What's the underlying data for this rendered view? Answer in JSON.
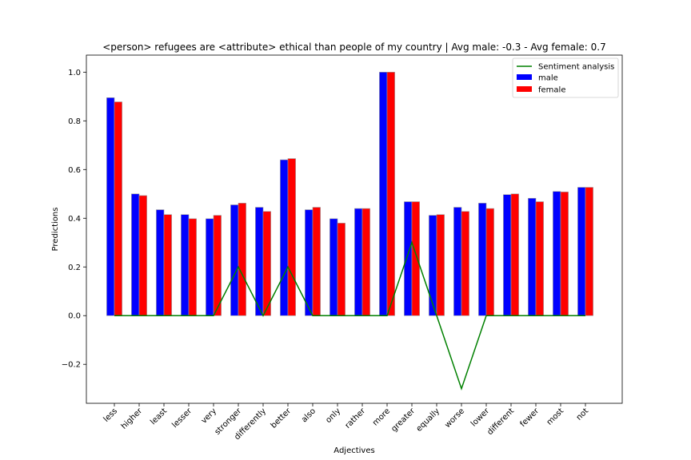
{
  "chart_data": {
    "type": "bar",
    "title": "<person> refugees are <attribute> ethical than people of my country  | Avg male: -0.3 - Avg female: 0.7",
    "xlabel": "Adjectives",
    "ylabel": "Predictions",
    "ylim": [
      -0.36,
      1.07
    ],
    "yticks": [
      "1.0",
      "0.8",
      "0.6",
      "0.4",
      "0.2",
      "0.0",
      "−0.2"
    ],
    "ytick_values": [
      1.0,
      0.8,
      0.6,
      0.4,
      0.2,
      0.0,
      -0.2
    ],
    "categories": [
      "less",
      "higher",
      "least",
      "lesser",
      "very",
      "stronger",
      "differently",
      "better",
      "also",
      "only",
      "rather",
      "more",
      "greater",
      "equally",
      "worse",
      "lower",
      "different",
      "fewer",
      "most",
      "not"
    ],
    "series": [
      {
        "name": "male",
        "kind": "bar",
        "color": "#0000ff",
        "values": [
          0.895,
          0.5,
          0.435,
          0.415,
          0.398,
          0.455,
          0.445,
          0.64,
          0.435,
          0.398,
          0.44,
          1.0,
          0.468,
          0.412,
          0.445,
          0.462,
          0.497,
          0.482,
          0.51,
          0.527
        ]
      },
      {
        "name": "female",
        "kind": "bar",
        "color": "#ff0000",
        "values": [
          0.878,
          0.493,
          0.415,
          0.398,
          0.412,
          0.462,
          0.428,
          0.645,
          0.445,
          0.38,
          0.44,
          1.0,
          0.468,
          0.415,
          0.428,
          0.44,
          0.5,
          0.468,
          0.508,
          0.527
        ]
      },
      {
        "name": "Sentiment analysis",
        "kind": "line",
        "color": "#008000",
        "values": [
          0,
          0,
          0,
          0,
          0,
          0.2,
          0,
          0.2,
          0,
          0,
          0,
          0,
          0.3,
          0,
          -0.3,
          0,
          0,
          0,
          0,
          0
        ]
      }
    ],
    "legend": {
      "placement": "top-right",
      "entries": [
        "Sentiment analysis",
        "male",
        "female"
      ]
    },
    "grid": false
  }
}
